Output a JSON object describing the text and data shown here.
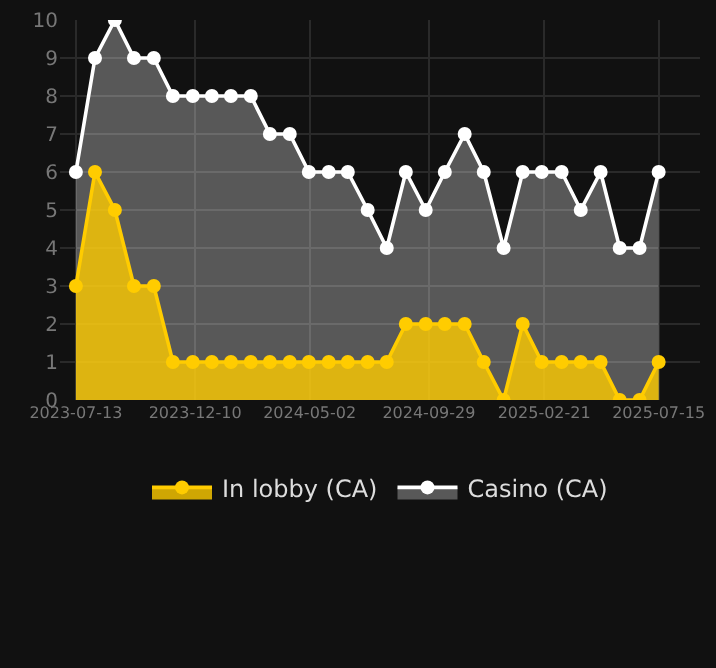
{
  "chart_data": {
    "type": "area",
    "x": [
      "2023-07-13",
      "2023-08-06",
      "2023-08-31",
      "2023-09-24",
      "2023-10-19",
      "2023-11-12",
      "2023-12-07",
      "2023-12-31",
      "2024-01-24",
      "2024-02-18",
      "2024-03-13",
      "2024-04-07",
      "2024-05-01",
      "2024-05-26",
      "2024-06-19",
      "2024-07-14",
      "2024-08-07",
      "2024-08-31",
      "2024-09-25",
      "2024-10-19",
      "2024-11-13",
      "2024-12-07",
      "2025-01-01",
      "2025-01-25",
      "2025-02-18",
      "2025-03-15",
      "2025-04-08",
      "2025-05-03",
      "2025-05-27",
      "2025-06-21",
      "2025-07-15"
    ],
    "series": [
      {
        "name": "In lobby (CA)",
        "color": "#ffcc00",
        "values": [
          3,
          6,
          5,
          3,
          3,
          1,
          1,
          1,
          1,
          1,
          1,
          1,
          1,
          1,
          1,
          1,
          1,
          2,
          2,
          2,
          2,
          1,
          0,
          2,
          1,
          1,
          1,
          1,
          0,
          0,
          1
        ]
      },
      {
        "name": "Casino (CA)",
        "color": "#ffffff",
        "values": [
          6,
          9,
          10,
          9,
          9,
          8,
          8,
          8,
          8,
          8,
          7,
          7,
          6,
          6,
          6,
          5,
          4,
          6,
          5,
          6,
          7,
          6,
          4,
          6,
          6,
          6,
          5,
          6,
          4,
          4,
          6
        ]
      }
    ],
    "xlim": [
      "2023-06-23",
      "2025-09-05"
    ],
    "xticks": [
      "2023-07-13",
      "2023-12-10",
      "2024-05-02",
      "2024-09-29",
      "2025-02-21",
      "2025-07-15"
    ],
    "ylim": [
      0,
      10
    ],
    "yticks": [
      0,
      1,
      2,
      3,
      4,
      5,
      6,
      7,
      8,
      9,
      10
    ],
    "grid": true,
    "legend": "bottom",
    "marker": "circle",
    "line_style": "solid"
  }
}
